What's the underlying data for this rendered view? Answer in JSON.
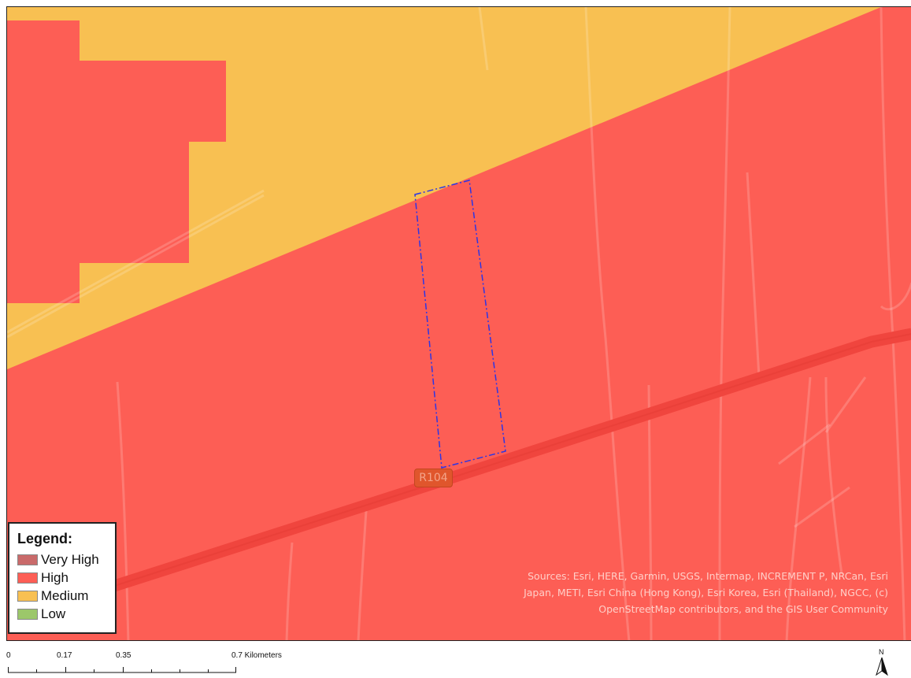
{
  "map": {
    "colors": {
      "very_high": "#c96a6a",
      "high": "#fd5e55",
      "medium": "#f8c052",
      "low": "#9cc76a",
      "road": "#f0453e",
      "boundary": "#2b35e6"
    },
    "road_shield": "R104",
    "attribution": {
      "line1": "Sources: Esri, HERE, Garmin, USGS, Intermap, INCREMENT P, NRCan, Esri",
      "line2": "Japan, METI, Esri China (Hong Kong), Esri Korea, Esri (Thailand), NGCC, (c)",
      "line3": "OpenStreetMap contributors, and the GIS User Community"
    }
  },
  "legend": {
    "title": "Legend:",
    "items": [
      {
        "label": "Very High",
        "color": "#c96a6a"
      },
      {
        "label": "High",
        "color": "#fd5e55"
      },
      {
        "label": "Medium",
        "color": "#f8c052"
      },
      {
        "label": "Low",
        "color": "#9cc76a"
      }
    ]
  },
  "scale_bar": {
    "tick_0": "0",
    "tick_1": "0.17",
    "tick_2": "0.35",
    "tick_3": "0.7 Kilometers"
  },
  "north_arrow": {
    "label": "N"
  }
}
